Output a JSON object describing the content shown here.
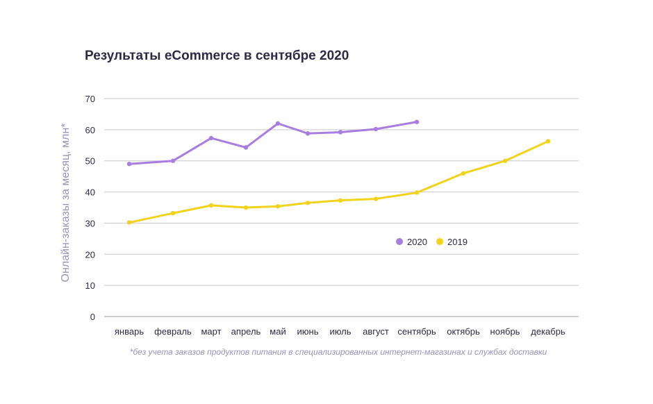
{
  "chart_data": {
    "type": "line",
    "title": "Результаты eCommerce в сентябре 2020",
    "xlabel": "",
    "ylabel": "Онлайн-заказы за месяц, млн*",
    "ylim": [
      0,
      70
    ],
    "yticks": [
      0,
      10,
      20,
      30,
      40,
      50,
      60,
      70
    ],
    "grid": true,
    "legend": "middle-right",
    "categories": [
      "январь",
      "февраль",
      "март",
      "апрель",
      "май",
      "июнь",
      "июль",
      "август",
      "сентябрь",
      "октябрь",
      "ноябрь",
      "декабрь"
    ],
    "series": [
      {
        "name": "2020",
        "color": "#a77de0",
        "values": [
          49,
          50,
          57.3,
          54.3,
          62,
          58.8,
          59.2,
          60.2,
          62.5,
          null,
          null,
          null
        ]
      },
      {
        "name": "2019",
        "color": "#f2d31b",
        "values": [
          30.2,
          33.2,
          35.7,
          35,
          35.4,
          36.5,
          37.3,
          37.8,
          39.8,
          46,
          50,
          56.3
        ]
      }
    ],
    "footnote": "*без учета заказов продуктов питания в специализированных интернет-магазинах и службах доставки"
  }
}
